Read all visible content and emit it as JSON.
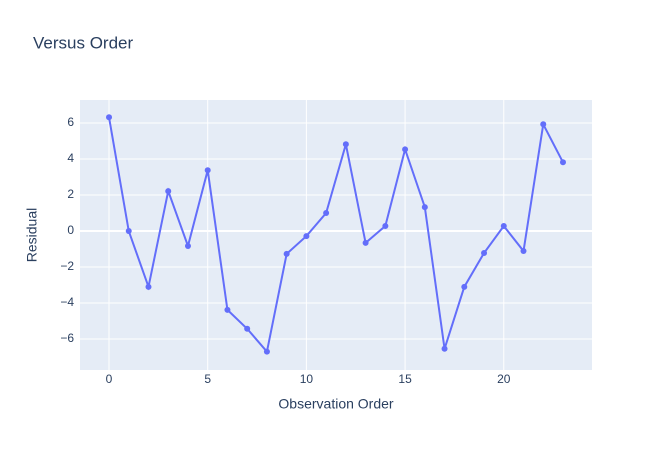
{
  "chart_data": {
    "type": "line",
    "title": "Versus Order",
    "x_label": "Observation Order",
    "y_label": "Residual",
    "x": [
      0,
      1,
      2,
      3,
      4,
      5,
      6,
      7,
      8,
      9,
      10,
      11,
      12,
      13,
      14,
      15,
      16,
      17,
      18,
      19,
      20,
      21,
      22,
      23
    ],
    "series": [
      {
        "name": "Residual",
        "color": "#636efa",
        "values": [
          6.32,
          0,
          -3.1,
          2.22,
          -0.83,
          3.38,
          -4.38,
          -5.43,
          -6.7,
          -1.27,
          -0.28,
          1.0,
          4.82,
          -0.66,
          0.28,
          4.54,
          1.33,
          -6.54,
          -3.1,
          -1.22,
          0.28,
          -1.11,
          5.93,
          3.82
        ]
      }
    ],
    "xlim": [
      -1.47,
      24.47
    ],
    "xticks": [
      0,
      5,
      10,
      15,
      20
    ],
    "ylim": [
      -7.72,
      7.28
    ],
    "yticks": [
      {
        "value": -6,
        "label": "−6"
      },
      {
        "value": -4,
        "label": "−4"
      },
      {
        "value": -2,
        "label": "−2"
      },
      0,
      2,
      4,
      6
    ],
    "grid": true,
    "markers": true,
    "background": "#e5ecf6"
  }
}
